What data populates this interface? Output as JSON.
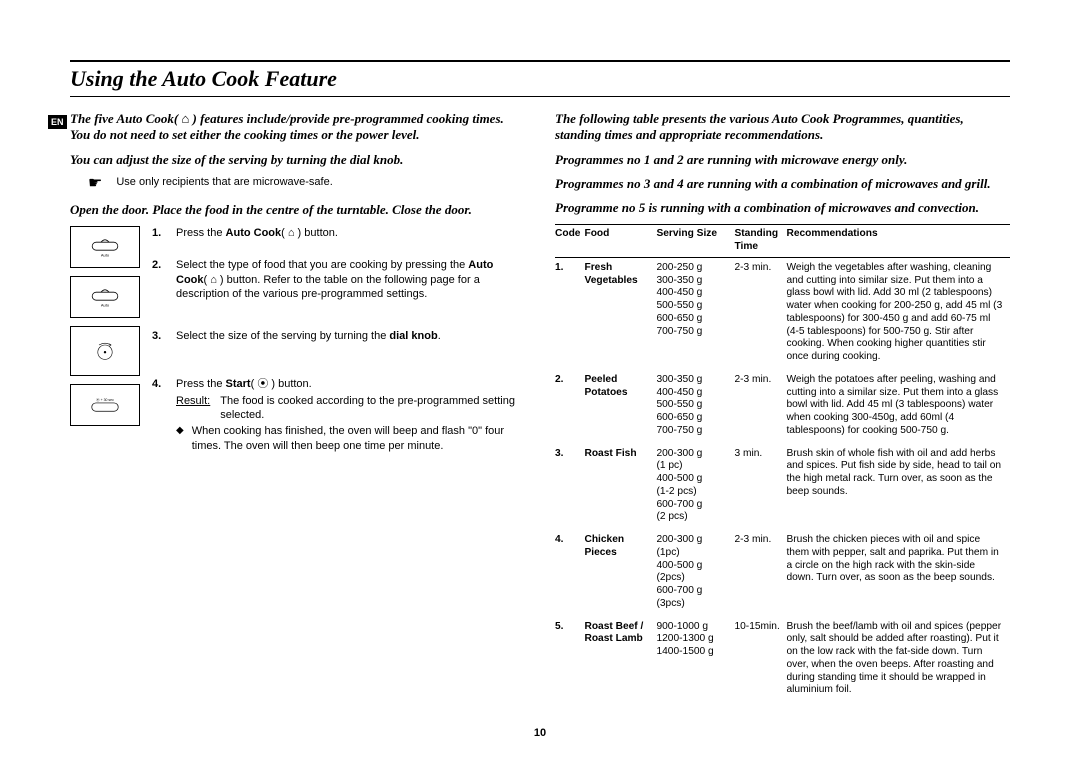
{
  "lang_tag": "EN",
  "title": "Using the Auto Cook Feature",
  "page_number": "10",
  "left": {
    "intro1": "The five Auto Cook( ⌂ ) features include/provide pre-programmed cooking times. You do not need to set either the cooking times or the power level.",
    "intro2": "You can adjust the size of the serving by turning the dial knob.",
    "note": "Use only recipients that are microwave-safe.",
    "intro3": "Open the door. Place the food in the centre of the turntable. Close the door.",
    "steps": [
      {
        "num": "1.",
        "text": "Press the <b>Auto Cook</b>( ⌂ ) button."
      },
      {
        "num": "2.",
        "text": "Select the type of food that you are cooking by pressing the <b>Auto Cook</b>( ⌂ ) button. Refer to the table on the following page for a description of the various pre-programmed settings."
      },
      {
        "num": "3.",
        "text": "Select the size of the serving by turning the <b>dial knob</b>."
      },
      {
        "num": "4.",
        "text": "Press the <b>Start</b>( ⦿ ) button.",
        "result_label": "Result:",
        "result": "The food is cooked according to the pre-programmed setting selected.",
        "sub": "When cooking has finished, the oven will beep and flash \"0\" four times. The oven will then beep one time per minute."
      }
    ],
    "icon_labels": {
      "auto": "Auto",
      "plus30": "+ 30 sec"
    }
  },
  "right": {
    "intro1": "The following table presents the various Auto Cook Programmes, quantities, standing times and appropriate recommendations.",
    "intro2": "Programmes no 1 and 2 are running with microwave energy only.",
    "intro3": "Programmes no 3 and 4 are running with a combination of microwaves and grill.",
    "intro4": "Programme no 5 is running with a combination of microwaves and convection.",
    "headers": {
      "code": "Code",
      "food": "Food",
      "serving": "Serving Size",
      "standing": "Standing Time",
      "rec": "Recommendations"
    },
    "rows": [
      {
        "code": "1.",
        "food": "Fresh Vegetables",
        "serving": "200-250 g\n300-350 g\n400-450 g\n500-550 g\n600-650 g\n700-750 g",
        "standing": "2-3 min.",
        "rec": "Weigh the vegetables after washing, cleaning and cutting into similar size. Put them into a glass bowl with lid. Add 30 ml (2 tablespoons) water when cooking for 200-250 g, add 45 ml (3 tablespoons) for 300-450 g and add 60-75 ml (4-5 tablespoons) for 500-750 g. Stir after cooking. When cooking higher quantities stir once during cooking."
      },
      {
        "code": "2.",
        "food": "Peeled Potatoes",
        "serving": "300-350 g\n400-450 g\n500-550 g\n600-650 g\n700-750 g",
        "standing": "2-3 min.",
        "rec": "Weigh the potatoes after peeling, washing and cutting into a similar size. Put them into a glass bowl with lid. Add 45 ml (3 tablespoons) water when cooking 300-450g, add 60ml (4 tablespoons) for cooking 500-750 g."
      },
      {
        "code": "3.",
        "food": "Roast Fish",
        "serving": "200-300 g\n(1 pc)\n400-500 g\n(1-2 pcs)\n600-700 g\n(2 pcs)",
        "standing": "3 min.",
        "rec": "Brush skin of whole fish with oil and add herbs and spices. Put fish side by side, head to tail on the high metal rack. Turn over, as soon as the beep sounds."
      },
      {
        "code": "4.",
        "food": "Chicken Pieces",
        "serving": "200-300 g\n(1pc)\n400-500 g\n(2pcs)\n600-700 g\n(3pcs)",
        "standing": "2-3 min.",
        "rec": "Brush the chicken pieces with oil and spice them with pepper, salt and paprika. Put them in a circle on the high rack with the skin-side down. Turn over, as soon as the beep sounds."
      },
      {
        "code": "5.",
        "food": "Roast Beef / Roast Lamb",
        "serving": "900-1000 g\n1200-1300 g\n1400-1500 g",
        "standing": "10-15min.",
        "rec": "Brush the beef/lamb with oil and spices (pepper only, salt should be added after roasting).\nPut it on the low rack with the fat-side down. Turn over, when the oven beeps. After roasting and during standing time it should be wrapped in aluminium foil."
      }
    ]
  }
}
